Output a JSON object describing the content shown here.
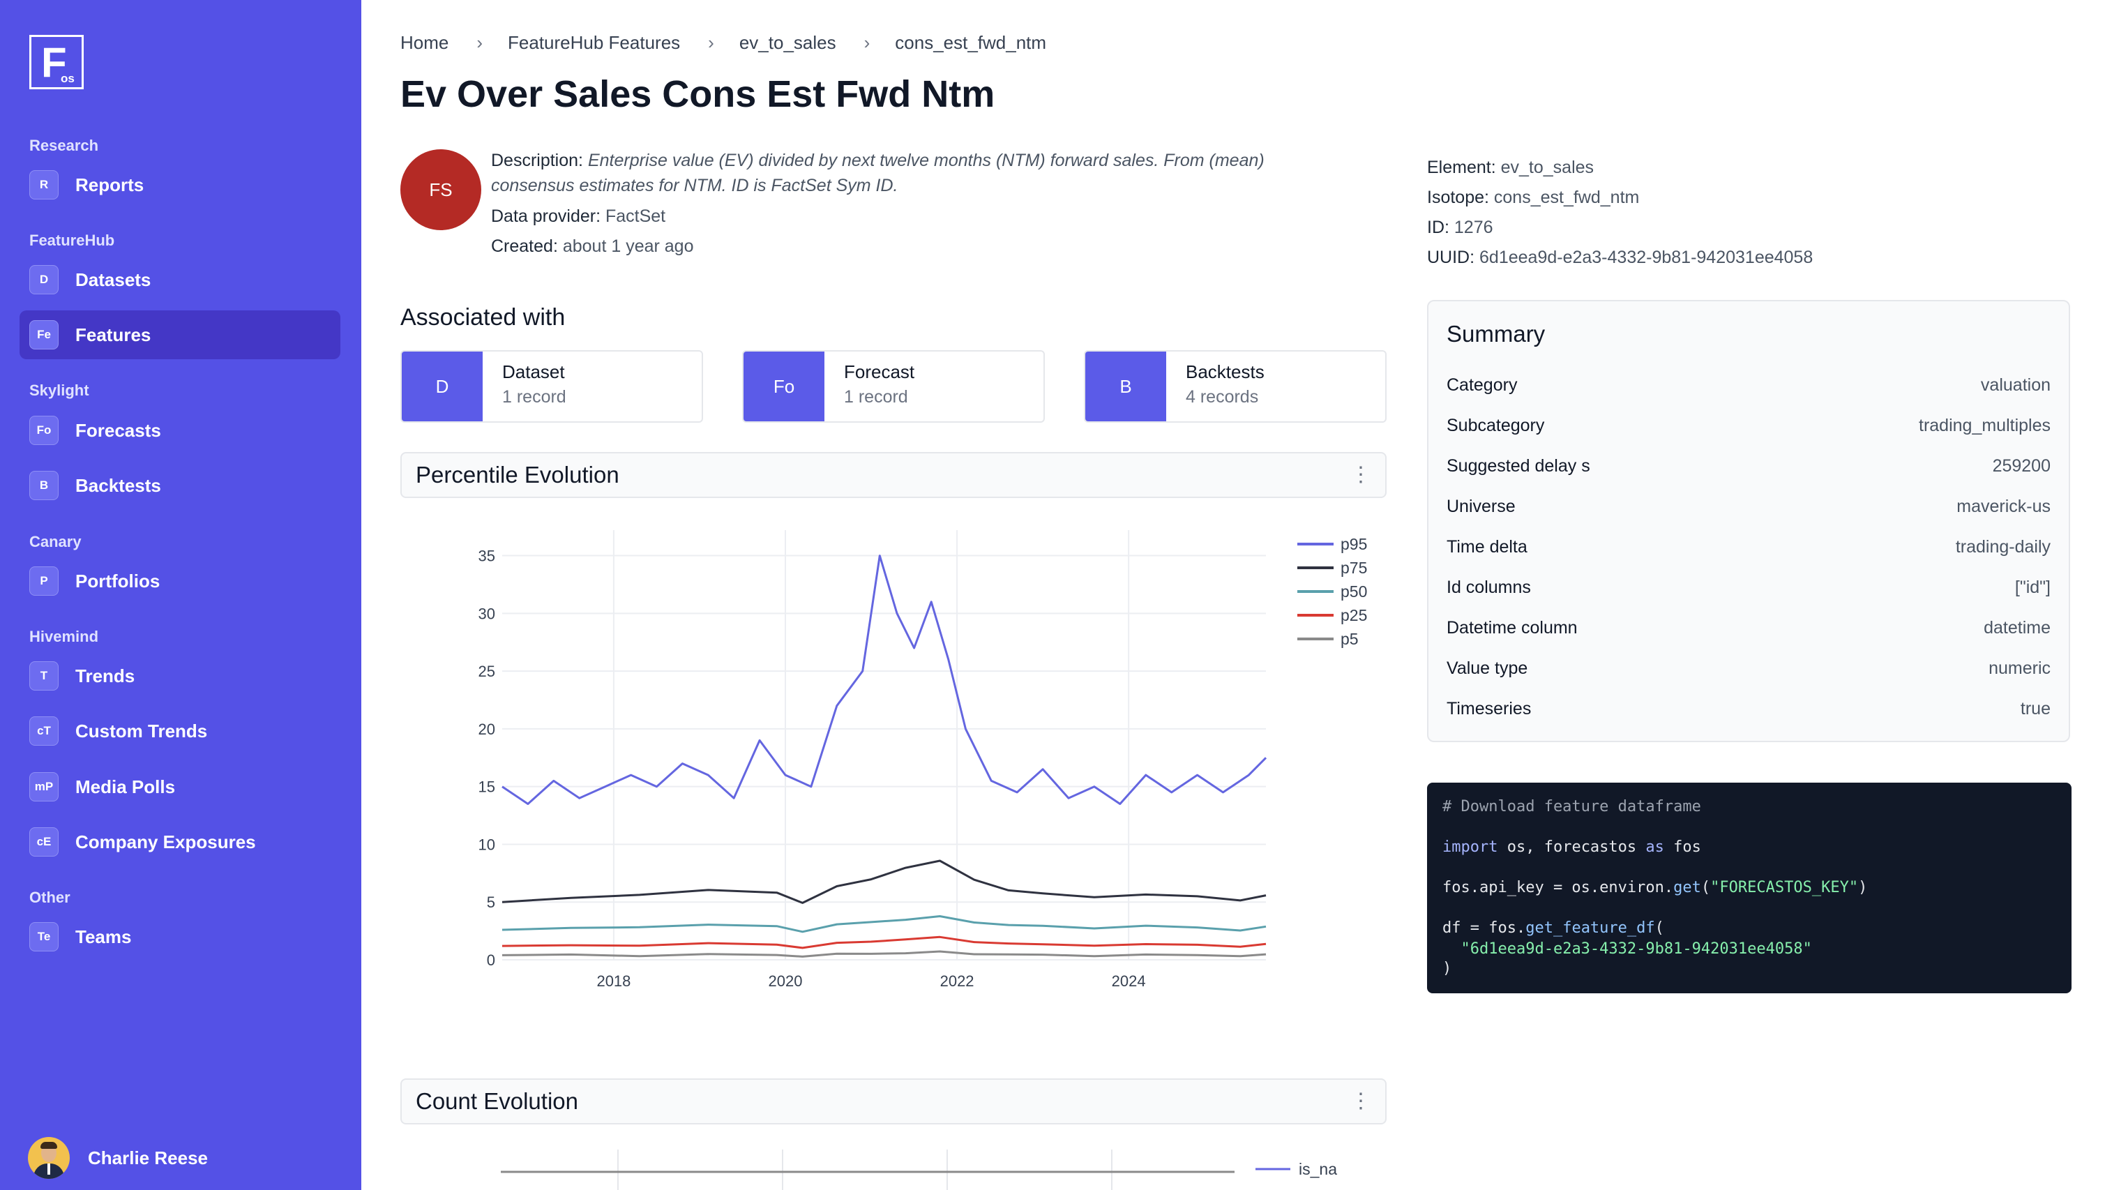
{
  "sidebar": {
    "logo": {
      "big": "F",
      "small": "os"
    },
    "sections": [
      {
        "title": "Research",
        "items": [
          {
            "badge": "R",
            "label": "Reports"
          }
        ]
      },
      {
        "title": "FeatureHub",
        "items": [
          {
            "badge": "D",
            "label": "Datasets"
          },
          {
            "badge": "Fe",
            "label": "Features"
          }
        ]
      },
      {
        "title": "Skylight",
        "items": [
          {
            "badge": "Fo",
            "label": "Forecasts"
          },
          {
            "badge": "B",
            "label": "Backtests"
          }
        ]
      },
      {
        "title": "Canary",
        "items": [
          {
            "badge": "P",
            "label": "Portfolios"
          }
        ]
      },
      {
        "title": "Hivemind",
        "items": [
          {
            "badge": "T",
            "label": "Trends"
          },
          {
            "badge": "cT",
            "label": "Custom Trends"
          },
          {
            "badge": "mP",
            "label": "Media Polls"
          },
          {
            "badge": "cE",
            "label": "Company Exposures"
          }
        ]
      },
      {
        "title": "Other",
        "items": [
          {
            "badge": "Te",
            "label": "Teams"
          }
        ]
      }
    ],
    "user": {
      "name": "Charlie Reese"
    }
  },
  "breadcrumb": [
    "Home",
    "FeatureHub Features",
    "ev_to_sales",
    "cons_est_fwd_ntm"
  ],
  "page": {
    "title": "Ev Over Sales Cons Est Fwd Ntm"
  },
  "provider_avatar": "FS",
  "meta": {
    "description_label": "Description:",
    "description_line1": "Enterprise value (EV) divided by next twelve months (NTM) forward sales. From (mean)",
    "description_line2": "consensus estimates for NTM. ID is FactSet Sym ID.",
    "provider_label": "Data provider:",
    "provider": "FactSet",
    "created_label": "Created:",
    "created": "about 1 year ago"
  },
  "ids": {
    "element_label": "Element:",
    "element": "ev_to_sales",
    "isotope_label": "Isotope:",
    "isotope": "cons_est_fwd_ntm",
    "id_label": "ID:",
    "id": "1276",
    "uuid_label": "UUID:",
    "uuid": "6d1eea9d-e2a3-4332-9b81-942031ee4058"
  },
  "associated": {
    "title": "Associated with",
    "cards": [
      {
        "badge": "D",
        "name": "Dataset",
        "count": "1 record"
      },
      {
        "badge": "Fo",
        "name": "Forecast",
        "count": "1 record"
      },
      {
        "badge": "B",
        "name": "Backtests",
        "count": "4 records"
      }
    ]
  },
  "panels": {
    "percentile": "Percentile Evolution",
    "count": "Count Evolution"
  },
  "summary": {
    "title": "Summary",
    "rows": [
      {
        "k": "Category",
        "v": "valuation"
      },
      {
        "k": "Subcategory",
        "v": "trading_multiples"
      },
      {
        "k": "Suggested delay s",
        "v": "259200"
      },
      {
        "k": "Universe",
        "v": "maverick-us"
      },
      {
        "k": "Time delta",
        "v": "trading-daily"
      },
      {
        "k": "Id columns",
        "v": "[\"id\"]"
      },
      {
        "k": "Datetime column",
        "v": "datetime"
      },
      {
        "k": "Value type",
        "v": "numeric"
      },
      {
        "k": "Timeseries",
        "v": "true"
      }
    ]
  },
  "code": {
    "comment": "# Download feature dataframe",
    "import_kw": "import",
    "import_mods": " os, forecastos ",
    "as_kw": "as",
    "alias": " fos",
    "api_line_a": "fos.api_key = os.environ.",
    "api_fn": "get",
    "api_paren_open": "(",
    "api_key_str": "\"FORECASTOS_KEY\"",
    "api_paren_close": ")",
    "df_line_a": "df = fos.",
    "df_fn": "get_feature_df",
    "df_paren": "(",
    "df_arg": "\"6d1eea9d-e2a3-4332-9b81-942031ee4058\"",
    "df_close": ")"
  },
  "colors": {
    "p95": "#6466e0",
    "p75": "#2f3240",
    "p50": "#5aa0ac",
    "p25": "#d93a32",
    "p5": "#8a8a8a",
    "is_na": "#6466e0",
    "sidebar": "#5451e6"
  },
  "chart_data": [
    {
      "type": "line",
      "title": "Percentile Evolution",
      "xlabel": "",
      "ylabel": "",
      "xlim": [
        2016.7,
        2025.6
      ],
      "ylim": [
        0,
        36
      ],
      "xticks": [
        "2018",
        "2020",
        "2022",
        "2024"
      ],
      "yticks": [
        "0",
        "5",
        "10",
        "15",
        "20",
        "25",
        "30",
        "35"
      ],
      "legend": "top-right",
      "grid": true,
      "series": [
        {
          "name": "p95",
          "x": [
            2016.7,
            2017.0,
            2017.3,
            2017.6,
            2017.9,
            2018.2,
            2018.5,
            2018.8,
            2019.1,
            2019.4,
            2019.7,
            2020.0,
            2020.3,
            2020.6,
            2020.9,
            2021.1,
            2021.3,
            2021.5,
            2021.7,
            2021.9,
            2022.1,
            2022.4,
            2022.7,
            2023.0,
            2023.3,
            2023.6,
            2023.9,
            2024.2,
            2024.5,
            2024.8,
            2025.1,
            2025.4,
            2025.6
          ],
          "values": [
            15,
            13.5,
            15.5,
            14,
            15,
            16,
            15,
            17,
            16,
            14,
            19,
            16,
            15,
            22,
            25,
            35,
            30,
            27,
            31,
            26,
            20,
            15.5,
            14.5,
            16.5,
            14,
            15,
            13.5,
            16,
            14.5,
            16,
            14.5,
            16,
            17.5
          ]
        },
        {
          "name": "p75",
          "x": [
            2016.7,
            2017.5,
            2018.3,
            2019.1,
            2019.9,
            2020.2,
            2020.6,
            2021.0,
            2021.4,
            2021.8,
            2022.2,
            2022.6,
            2023.0,
            2023.6,
            2024.2,
            2024.8,
            2025.3,
            2025.6
          ],
          "values": [
            5,
            5.3,
            5.7,
            6,
            5.8,
            5,
            6.3,
            7,
            8,
            8.5,
            7,
            6,
            5.7,
            5.5,
            5.6,
            5.5,
            5.2,
            5.5
          ]
        },
        {
          "name": "p50",
          "x": [
            2016.7,
            2017.5,
            2018.3,
            2019.1,
            2019.9,
            2020.2,
            2020.6,
            2021.0,
            2021.4,
            2021.8,
            2022.2,
            2022.6,
            2023.0,
            2023.6,
            2024.2,
            2024.8,
            2025.3,
            2025.6
          ],
          "values": [
            2.6,
            2.7,
            2.9,
            3,
            2.9,
            2.5,
            3,
            3.3,
            3.5,
            3.7,
            3.3,
            3,
            2.9,
            2.8,
            2.9,
            2.8,
            2.6,
            2.8
          ]
        },
        {
          "name": "p25",
          "x": [
            2016.7,
            2017.5,
            2018.3,
            2019.1,
            2019.9,
            2020.2,
            2020.6,
            2021.0,
            2021.4,
            2021.8,
            2022.2,
            2022.6,
            2023.0,
            2023.6,
            2024.2,
            2024.8,
            2025.3,
            2025.6
          ],
          "values": [
            1.2,
            1.2,
            1.3,
            1.4,
            1.3,
            1.1,
            1.4,
            1.6,
            1.8,
            1.9,
            1.6,
            1.4,
            1.3,
            1.3,
            1.3,
            1.3,
            1.2,
            1.3
          ]
        },
        {
          "name": "p5",
          "x": [
            2016.7,
            2017.5,
            2018.3,
            2019.1,
            2019.9,
            2020.2,
            2020.6,
            2021.0,
            2021.4,
            2021.8,
            2022.2,
            2022.6,
            2023.0,
            2023.6,
            2024.2,
            2024.8,
            2025.3,
            2025.6
          ],
          "values": [
            0.4,
            0.4,
            0.4,
            0.45,
            0.4,
            0.35,
            0.45,
            0.55,
            0.6,
            0.65,
            0.55,
            0.45,
            0.4,
            0.4,
            0.4,
            0.4,
            0.38,
            0.4
          ]
        }
      ]
    },
    {
      "type": "line",
      "title": "Count Evolution",
      "legend": "top-right",
      "series": [
        {
          "name": "is_na",
          "values": []
        }
      ]
    }
  ]
}
